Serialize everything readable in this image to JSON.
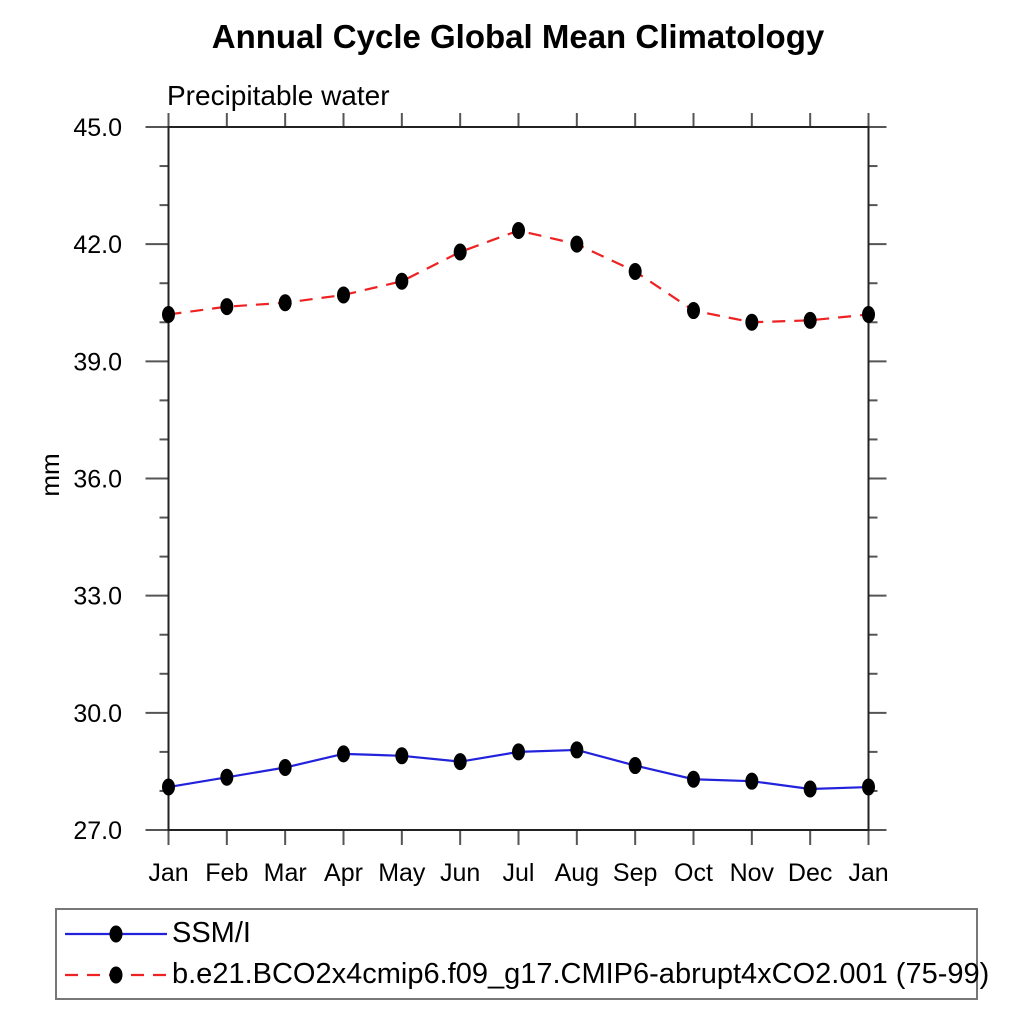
{
  "chart_data": {
    "type": "line",
    "title": "Annual Cycle Global Mean Climatology",
    "subtitle": "Precipitable water",
    "ylabel": "mm",
    "categories": [
      "Jan",
      "Feb",
      "Mar",
      "Apr",
      "May",
      "Jun",
      "Jul",
      "Aug",
      "Sep",
      "Oct",
      "Nov",
      "Dec",
      "Jan"
    ],
    "ylim": [
      27.0,
      45.0
    ],
    "y_major_ticks": [
      27.0,
      30.0,
      33.0,
      36.0,
      39.0,
      42.0,
      45.0
    ],
    "y_tick_labels": [
      "27.0",
      "30.0",
      "33.0",
      "36.0",
      "39.0",
      "42.0",
      "45.0"
    ],
    "y_minor_step": 1.0,
    "grid": "off",
    "legend_position": "bottom",
    "marker": {
      "shape": "filled-circle",
      "color": "#000000"
    },
    "series": [
      {
        "name": "SSM/I",
        "color": "#2222dd",
        "line_style": "solid",
        "values": [
          28.1,
          28.35,
          28.6,
          28.95,
          28.9,
          28.75,
          29.0,
          29.05,
          28.65,
          28.3,
          28.25,
          28.05,
          28.1
        ]
      },
      {
        "name": "b.e21.BCO2x4cmip6.f09_g17.CMIP6-abrupt4xCO2.001 (75-99)",
        "color": "#ee2222",
        "line_style": "dashed",
        "values": [
          40.2,
          40.4,
          40.5,
          40.7,
          41.05,
          41.8,
          42.35,
          42.0,
          41.3,
          40.3,
          40.0,
          40.05,
          40.2
        ]
      }
    ]
  }
}
